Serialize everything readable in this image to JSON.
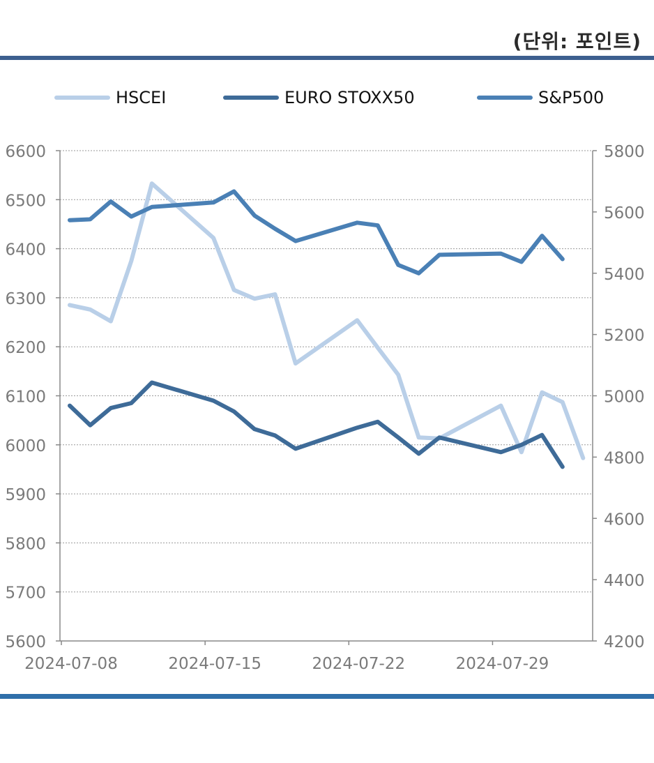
{
  "unit_label": "(단위: 포인트)",
  "chart_data": {
    "type": "line",
    "x_ticks": [
      "2024-07-08",
      "2024-07-15",
      "2024-07-22",
      "2024-07-29"
    ],
    "x": [
      "2024-07-08",
      "2024-07-09",
      "2024-07-10",
      "2024-07-11",
      "2024-07-12",
      "2024-07-15",
      "2024-07-16",
      "2024-07-17",
      "2024-07-18",
      "2024-07-19",
      "2024-07-22",
      "2024-07-23",
      "2024-07-24",
      "2024-07-25",
      "2024-07-26",
      "2024-07-29",
      "2024-07-30",
      "2024-07-31",
      "2024-08-01",
      "2024-08-02"
    ],
    "left_axis": {
      "ylim": [
        5600,
        6600
      ],
      "ticks": [
        "6600",
        "6500",
        "6400",
        "6300",
        "6200",
        "6100",
        "6000",
        "5900",
        "5800",
        "5700",
        "5600"
      ]
    },
    "right_axis": {
      "ylim": [
        4200,
        5800
      ],
      "ticks": [
        "5800",
        "5600",
        "5400",
        "5200",
        "5000",
        "4800",
        "4600",
        "4400",
        "4200"
      ]
    },
    "series": [
      {
        "name": "HSCEI",
        "axis": "left",
        "color": "#b9cfe8",
        "values": [
          6285,
          6276,
          6252,
          6375,
          6533,
          6422,
          6316,
          6298,
          6307,
          6166,
          6254,
          6198,
          6143,
          6015,
          6013,
          6080,
          5985,
          6107,
          6087,
          5973
        ]
      },
      {
        "name": "EURO STOXX50",
        "axis": "left",
        "color": "#3e6b98",
        "values": [
          6080,
          6040,
          6075,
          6085,
          6127,
          6090,
          6068,
          6032,
          6019,
          5992,
          6035,
          6047,
          6015,
          5982,
          6015,
          5985,
          6000,
          6020,
          5955,
          null
        ]
      },
      {
        "name": "S&P500",
        "axis": "right",
        "color": "#4a80b5",
        "values": [
          5573,
          5576,
          5634,
          5585,
          5616,
          5631,
          5667,
          5588,
          5545,
          5505,
          5565,
          5556,
          5427,
          5400,
          5460,
          5464,
          5437,
          5522,
          5446,
          null
        ]
      }
    ],
    "grid": true,
    "legend_position": "top"
  }
}
